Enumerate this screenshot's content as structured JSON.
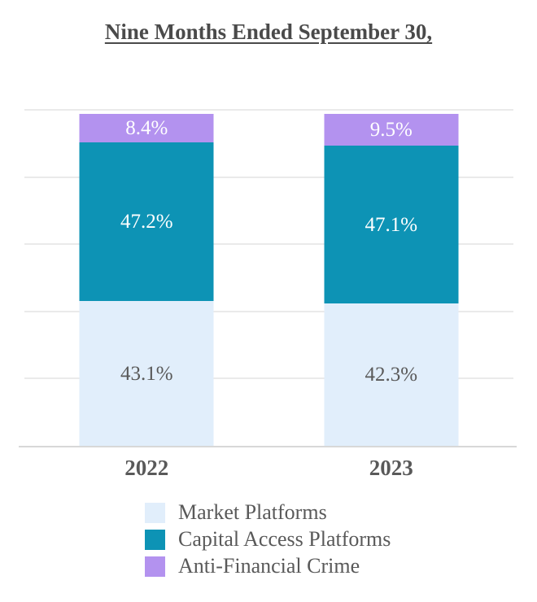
{
  "title": "Nine Months Ended September 30,",
  "colors": {
    "market_platforms": "#E1EEFB",
    "capital_access_platforms": "#0D93B5",
    "anti_financial_crime": "#B392EF",
    "gridline": "#EAEAEA",
    "axis_line": "#D8D8D8",
    "title_text": "#4A4A4A",
    "dark_label": "#595959",
    "light_label": "#FFFFFF",
    "background": "#FFFFFF"
  },
  "chart_data": {
    "type": "bar",
    "stacked": true,
    "title": "Nine Months Ended September 30,",
    "categories": [
      "2022",
      "2023"
    ],
    "series": [
      {
        "name": "Market Platforms",
        "values": [
          43.1,
          42.3
        ],
        "labels": [
          "43.1%",
          "42.3%"
        ],
        "color": "#E1EEFB",
        "label_color": "#595959"
      },
      {
        "name": "Capital Access Platforms",
        "values": [
          47.2,
          47.1
        ],
        "labels": [
          "47.2%",
          "47.1%"
        ],
        "color": "#0D93B5",
        "label_color": "#FFFFFF"
      },
      {
        "name": "Anti-Financial Crime",
        "values": [
          8.4,
          9.5
        ],
        "labels": [
          "8.4%",
          "9.5%"
        ],
        "color": "#B392EF",
        "label_color": "#FFFFFF"
      }
    ],
    "xlabel": "",
    "ylabel": "",
    "ylim": [
      0,
      100
    ],
    "gridlines_percent": [
      0,
      20,
      40,
      60,
      80,
      100
    ],
    "grid": true,
    "legend_position": "bottom-left"
  },
  "legend": {
    "items": [
      {
        "label": "Market Platforms",
        "color": "#E1EEFB"
      },
      {
        "label": "Capital Access Platforms",
        "color": "#0D93B5"
      },
      {
        "label": "Anti-Financial Crime",
        "color": "#B392EF"
      }
    ]
  }
}
